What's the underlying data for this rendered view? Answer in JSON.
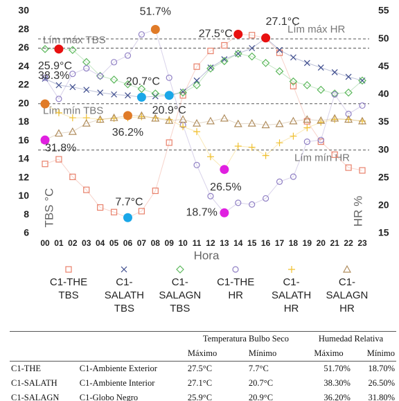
{
  "chart_data": {
    "type": "line",
    "x_label": "Hora",
    "y_label": "TBS °C",
    "y2_label": "HR %",
    "categories": [
      "00",
      "01",
      "02",
      "03",
      "04",
      "05",
      "06",
      "07",
      "08",
      "09",
      "10",
      "11",
      "12",
      "13",
      "14",
      "15",
      "16",
      "17",
      "18",
      "19",
      "20",
      "21",
      "22",
      "23"
    ],
    "ylim": [
      6,
      30
    ],
    "yticks": [
      6,
      8,
      10,
      12,
      14,
      16,
      18,
      20,
      22,
      24,
      26,
      28,
      30
    ],
    "y2lim": [
      15,
      55
    ],
    "y2ticks": [
      15,
      20,
      25,
      30,
      35,
      40,
      45,
      50,
      55
    ],
    "grid": false,
    "legend": "bottom",
    "series": [
      {
        "name": "C1-THE TBS",
        "color": "#e8806a",
        "marker": "square",
        "axis": "y",
        "values": [
          13.5,
          14,
          12.1,
          10.7,
          8.8,
          8.3,
          7.7,
          8.4,
          10.6,
          15.8,
          20.9,
          24,
          25.7,
          26.3,
          27.5,
          27.4,
          27.1,
          25.5,
          21.9,
          18.1,
          15.9,
          14.5,
          13.1,
          12.8
        ]
      },
      {
        "name": "C1-SALATH TBS",
        "color": "#3b4a8c",
        "marker": "x",
        "axis": "y",
        "values": [
          22.7,
          22.0,
          21.8,
          21.5,
          21.2,
          21.0,
          20.9,
          20.7,
          20.8,
          20.9,
          21.3,
          22.5,
          23.9,
          24.8,
          25.4,
          26.0,
          27.1,
          25.8,
          25.0,
          24.4,
          23.9,
          23.4,
          22.9,
          22.5
        ]
      },
      {
        "name": "C1-SALAGN TBS",
        "color": "#5cb85c",
        "marker": "diamond",
        "axis": "y",
        "values": [
          25.9,
          25.9,
          25.8,
          24.5,
          23.0,
          22.6,
          22.1,
          21.6,
          21.1,
          20.9,
          21.2,
          22.0,
          23.8,
          24.6,
          25.4,
          25.1,
          24.4,
          23.5,
          22.4,
          22.0,
          21.5,
          21.1,
          21.2,
          22.5
        ]
      },
      {
        "name": "C1-THE HR",
        "color": "#8f7fc4",
        "marker": "circle",
        "axis": "y2",
        "values": [
          43,
          39.2,
          43.7,
          44.7,
          43.3,
          45.8,
          47,
          50.8,
          51.7,
          43,
          34.5,
          27.3,
          21.7,
          18.7,
          20.5,
          20.2,
          21.3,
          24.3,
          25.2,
          31.5,
          31.8,
          40,
          36.5,
          38
        ]
      },
      {
        "name": "C1-SALATH HR",
        "color": "#f0c030",
        "marker": "plus",
        "axis": "y2",
        "values": [
          38.3,
          36.7,
          35.8,
          35.8,
          35.5,
          35.7,
          35.8,
          36,
          35.8,
          35.5,
          34.2,
          33.3,
          28.8,
          26.5,
          30.7,
          30.5,
          29,
          31.3,
          32.5,
          34,
          35,
          35.5,
          35.5,
          35.2
        ]
      },
      {
        "name": "C1-SALAGN HR",
        "color": "#b08d5e",
        "marker": "triangle",
        "axis": "y2",
        "values": [
          31.8,
          33,
          33.3,
          34.8,
          35.5,
          35.8,
          36.2,
          36.2,
          35.7,
          35.3,
          35.5,
          34.8,
          35.2,
          35.7,
          34.7,
          34.8,
          34.5,
          34.7,
          35.2,
          35.5,
          35.3,
          35.7,
          35.5,
          35.2
        ]
      }
    ],
    "reference_lines": [
      {
        "label": "Lím máx TBS",
        "value": 26,
        "axis": "y"
      },
      {
        "label": "Lím mín TBS",
        "value": 20,
        "axis": "y"
      },
      {
        "label": "Lím máx HR",
        "value": 50,
        "axis": "y2"
      },
      {
        "label": "Lím mín HR",
        "value": 30,
        "axis": "y2"
      }
    ],
    "annotations": [
      {
        "label": "25.9°C",
        "x": "01",
        "value": 25.9,
        "axis": "y",
        "color": "#e81010"
      },
      {
        "label": "38.3%",
        "x": "00",
        "value": 38.3,
        "axis": "y2",
        "color": "#e07b28"
      },
      {
        "label": "51.7%",
        "x": "08",
        "value": 51.7,
        "axis": "y2",
        "color": "#e07b28"
      },
      {
        "label": "27.5°C",
        "x": "14",
        "value": 27.5,
        "axis": "y",
        "color": "#e81010"
      },
      {
        "label": "27.1°C",
        "x": "16",
        "value": 27.1,
        "axis": "y",
        "color": "#e81010"
      },
      {
        "label": "20.7°C",
        "x": "07",
        "value": 20.7,
        "axis": "y",
        "color": "#1aa7e8"
      },
      {
        "label": "20.9°C",
        "x": "09",
        "value": 20.9,
        "axis": "y",
        "color": "#1aa7e8"
      },
      {
        "label": "7.7°C",
        "x": "06",
        "value": 7.7,
        "axis": "y",
        "color": "#1aa7e8"
      },
      {
        "label": "36.2%",
        "x": "06",
        "value": 36.2,
        "axis": "y2",
        "color": "#e07b28"
      },
      {
        "label": "31.8%",
        "x": "00",
        "value": 31.8,
        "axis": "y2",
        "color": "#e020e0"
      },
      {
        "label": "26.5%",
        "x": "13",
        "value": 26.5,
        "axis": "y2",
        "color": "#e020e0"
      },
      {
        "label": "18.7%",
        "x": "13",
        "value": 18.7,
        "axis": "y2",
        "color": "#e020e0"
      }
    ]
  },
  "table": {
    "group_headers": [
      "Temperatura Bulbo Seco",
      "Humedad Relativa"
    ],
    "sub_headers": [
      "Máximo",
      "Mínimo",
      "Máximo",
      "Mínimo"
    ],
    "rows": [
      [
        "C1-THE",
        "C1-Ambiente Exterior",
        "27.5°C",
        "7.7°C",
        "51.70%",
        "18.70%"
      ],
      [
        "C1-SALATH",
        "C1-Ambiente Interior",
        "27.1°C",
        "20.7°C",
        "38.30%",
        "26.50%"
      ],
      [
        "C1-SALAGN",
        "C1-Globo Negro",
        "25.9°C",
        "20.9°C",
        "36.20%",
        "31.80%"
      ]
    ]
  }
}
